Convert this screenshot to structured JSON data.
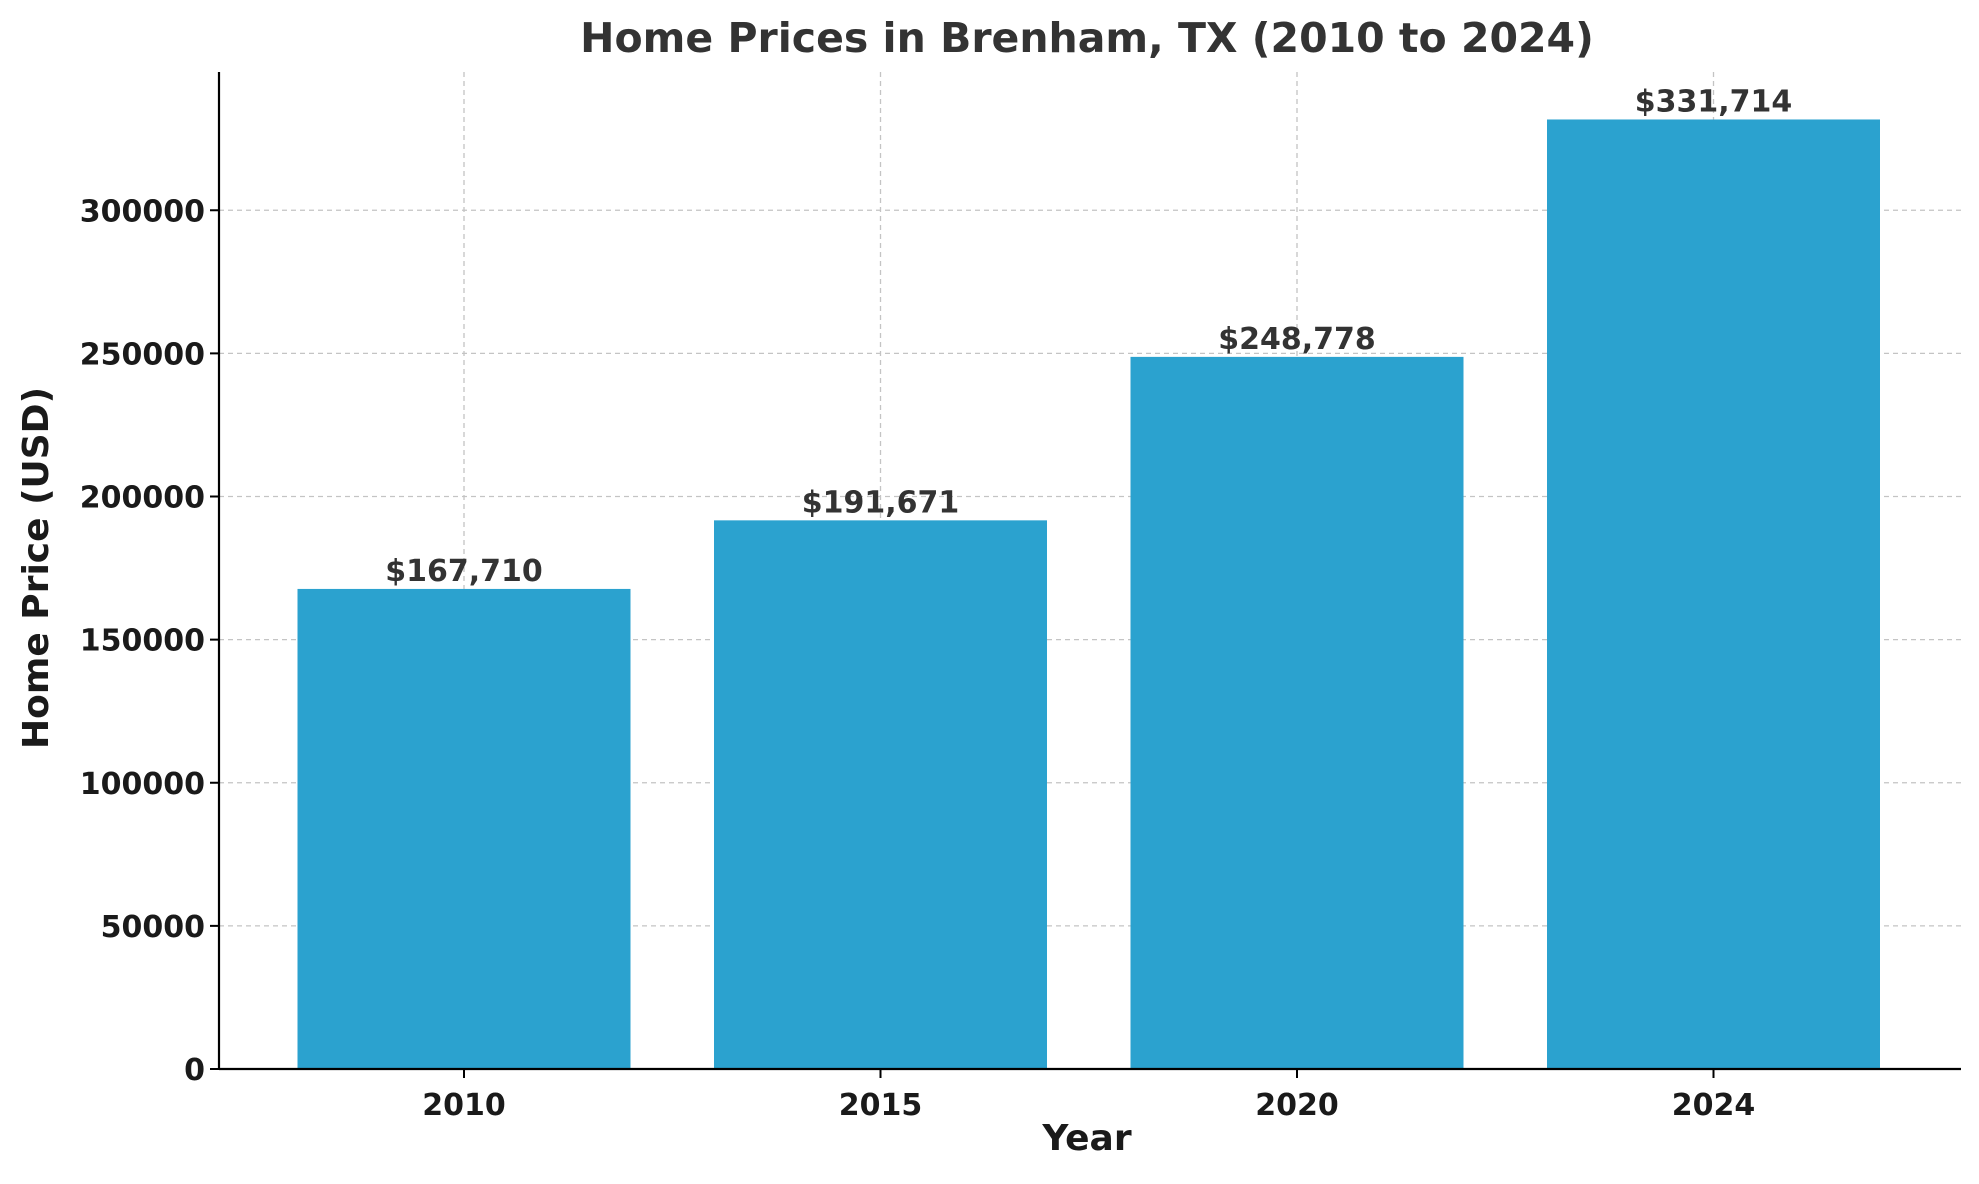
{
  "chart_data": {
    "type": "bar",
    "title": "Home Prices in Brenham, TX (2010 to 2024)",
    "xlabel": "Year",
    "ylabel": "Home Price (USD)",
    "categories": [
      "2010",
      "2015",
      "2020",
      "2024"
    ],
    "values": [
      167710,
      191671,
      248778,
      331714
    ],
    "data_labels": [
      "$167,710",
      "$191,671",
      "$248,778",
      "$331,714"
    ],
    "y_ticks": [
      0,
      50000,
      100000,
      150000,
      200000,
      250000,
      300000
    ],
    "y_tick_labels": [
      "0",
      "50000",
      "100000",
      "150000",
      "200000",
      "250000",
      "300000"
    ],
    "ylim": [
      0,
      348300
    ],
    "grid": true,
    "colors": {
      "bar": "#2ba2cf",
      "text": "#333333",
      "tick_text": "#1a1a1a",
      "axis": "#000000",
      "grid": "#c4c4c4"
    }
  }
}
